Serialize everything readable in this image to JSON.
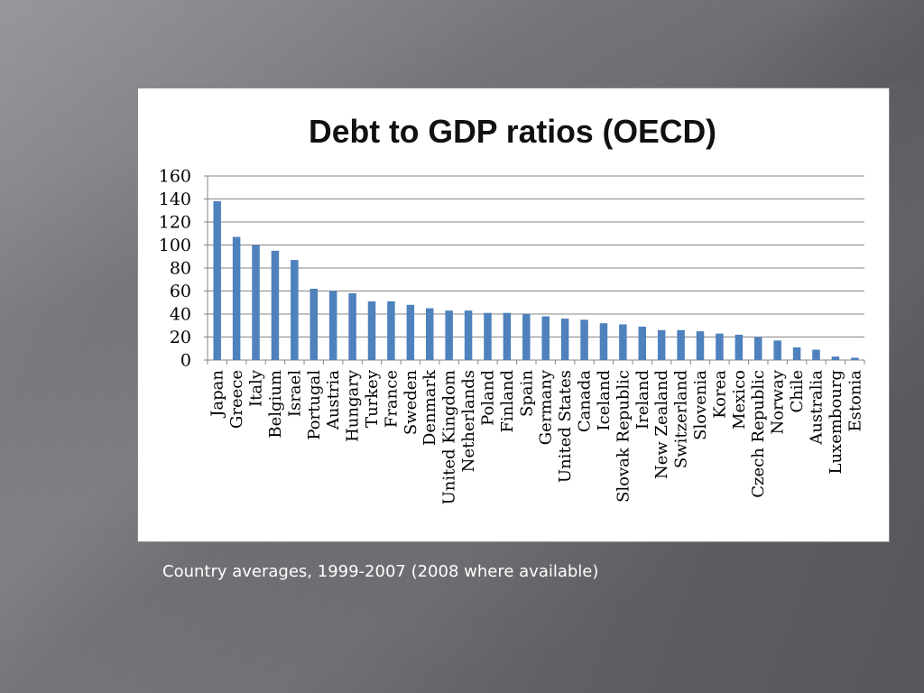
{
  "slide": {
    "caption": "Country averages, 1999-2007 (2008 where available)"
  },
  "colors": {
    "bar": "#4f81bd",
    "grid": "#878787",
    "caption": "#ffffff",
    "chart_background": "#ffffff"
  },
  "chart_data": {
    "type": "bar",
    "title": "Debt to GDP ratios (OECD)",
    "ylim": [
      0,
      160
    ],
    "yticks": [
      0,
      20,
      40,
      60,
      80,
      100,
      120,
      140,
      160
    ],
    "grid": true,
    "categories": [
      "Japan",
      "Greece",
      "Italy",
      "Belgium",
      "Israel",
      "Portugal",
      "Austria",
      "Hungary",
      "Turkey",
      "France",
      "Sweden",
      "Denmark",
      "United Kingdom",
      "Netherlands",
      "Poland",
      "Finland",
      "Spain",
      "Germany",
      "United States",
      "Canada",
      "Iceland",
      "Slovak Republic",
      "Ireland",
      "New Zealand",
      "Switzerland",
      "Slovenia",
      "Korea",
      "Mexico",
      "Czech Republic",
      "Norway",
      "Chile",
      "Australia",
      "Luxembourg",
      "Estonia"
    ],
    "values": [
      138,
      107,
      100,
      95,
      87,
      62,
      60,
      58,
      51,
      51,
      48,
      45,
      43,
      43,
      41,
      41,
      40,
      38,
      36,
      35,
      32,
      31,
      29,
      26,
      26,
      25,
      23,
      22,
      20,
      17,
      11,
      9,
      3,
      2
    ]
  }
}
